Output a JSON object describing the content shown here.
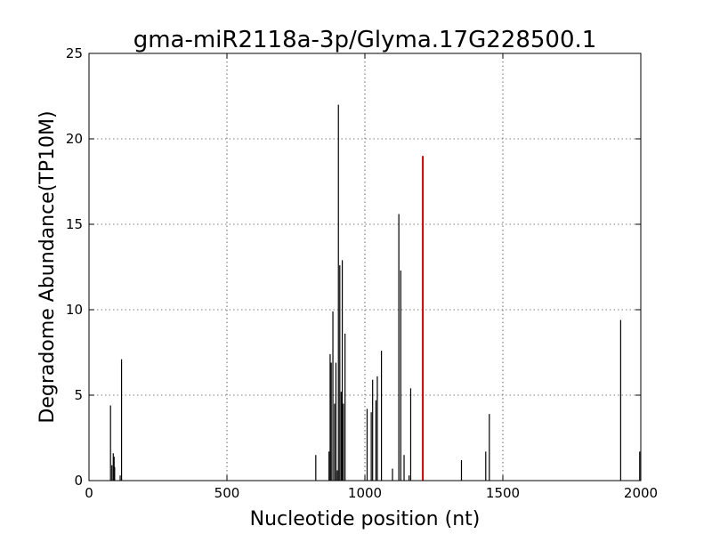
{
  "chart_data": {
    "type": "bar",
    "title": "gma-miR2118a-3p/Glyma.17G228500.1",
    "xlabel": "Nucleotide position (nt)",
    "ylabel": "Degradome Abundance(TP10M)",
    "xlim": [
      0,
      2000
    ],
    "ylim": [
      0,
      25
    ],
    "xticks": [
      0,
      500,
      1000,
      1500,
      2000
    ],
    "yticks": [
      0,
      5,
      10,
      15,
      20,
      25
    ],
    "grid": true,
    "colors": {
      "background": "#ffffff",
      "bars": "#000000",
      "highlight": "#cc0000"
    },
    "series": [
      {
        "values": [
          {
            "x": 78,
            "y": 4.4
          },
          {
            "x": 83,
            "y": 0.9
          },
          {
            "x": 88,
            "y": 1.6
          },
          {
            "x": 91,
            "y": 1.4
          },
          {
            "x": 93,
            "y": 0.8
          },
          {
            "x": 113,
            "y": 0.3
          },
          {
            "x": 118,
            "y": 7.1
          },
          {
            "x": 822,
            "y": 1.5
          },
          {
            "x": 870,
            "y": 1.7
          },
          {
            "x": 874,
            "y": 7.4
          },
          {
            "x": 878,
            "y": 6.9
          },
          {
            "x": 884,
            "y": 9.9
          },
          {
            "x": 890,
            "y": 4.5
          },
          {
            "x": 895,
            "y": 6.9
          },
          {
            "x": 900,
            "y": 0.6
          },
          {
            "x": 904,
            "y": 22.0
          },
          {
            "x": 909,
            "y": 12.6
          },
          {
            "x": 914,
            "y": 5.2
          },
          {
            "x": 918,
            "y": 12.9
          },
          {
            "x": 922,
            "y": 4.5
          },
          {
            "x": 928,
            "y": 8.6
          },
          {
            "x": 1008,
            "y": 4.2
          },
          {
            "x": 1023,
            "y": 4.0
          },
          {
            "x": 1028,
            "y": 5.9
          },
          {
            "x": 1040,
            "y": 4.7
          },
          {
            "x": 1045,
            "y": 6.1
          },
          {
            "x": 1060,
            "y": 7.6
          },
          {
            "x": 1100,
            "y": 0.7
          },
          {
            "x": 1123,
            "y": 15.6
          },
          {
            "x": 1130,
            "y": 12.3
          },
          {
            "x": 1142,
            "y": 1.5
          },
          {
            "x": 1160,
            "y": 0.3
          },
          {
            "x": 1166,
            "y": 5.4
          },
          {
            "x": 1350,
            "y": 1.2
          },
          {
            "x": 1438,
            "y": 1.7
          },
          {
            "x": 1451,
            "y": 3.9
          },
          {
            "x": 1927,
            "y": 9.4
          },
          {
            "x": 1996,
            "y": 1.7
          }
        ]
      },
      {
        "highlight": true,
        "values": [
          {
            "x": 1210,
            "y": 19.0
          }
        ]
      }
    ]
  }
}
